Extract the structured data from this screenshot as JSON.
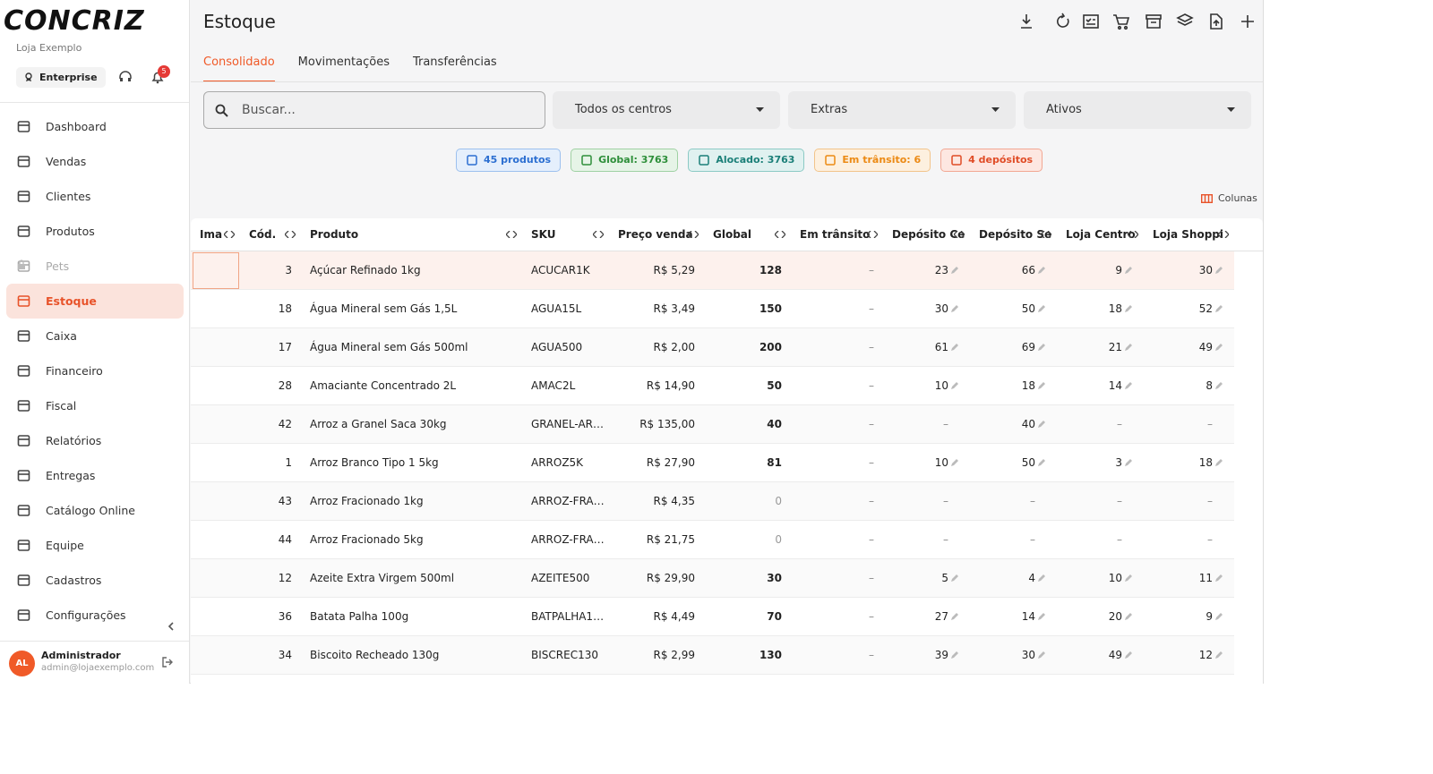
{
  "sidebar": {
    "logo": "CONCRIZ",
    "store": "Loja Exemplo",
    "plan": "Enterprise",
    "badge": "5",
    "nav": [
      "Dashboard",
      "Vendas",
      "Clientes",
      "Produtos",
      "Pets",
      "Estoque",
      "Caixa",
      "Financeiro",
      "Fiscal",
      "Relatórios",
      "Entregas",
      "Catálogo Online",
      "Equipe",
      "Cadastros",
      "Configurações"
    ],
    "active": 5,
    "locked": [
      4
    ],
    "user": {
      "initials": "AL",
      "name": "Administrador",
      "email": "admin@lojaexemplo.com"
    }
  },
  "header": {
    "title": "Estoque"
  },
  "tabs": [
    "Consolidado",
    "Movimentações",
    "Transferências"
  ],
  "filters": {
    "search": "Buscar...",
    "selects": [
      "Todos os centros",
      "Extras",
      "Ativos"
    ]
  },
  "chips": [
    "45 produtos",
    "Global: 3763",
    "Alocado: 3763",
    "Em trânsito: 6",
    "4 depósitos"
  ],
  "columns_button": "Colunas",
  "table": {
    "headers": [
      "Ima",
      "Cód.",
      "Produto",
      "SKU",
      "Preço venda",
      "Global",
      "Em trânsito",
      "Depósito Ce",
      "Depósito Se",
      "Loja Centro",
      "Loja Shoppi"
    ],
    "rows": [
      [
        3,
        "Açúcar Refinado 1kg",
        "ACUCAR1K",
        "R$ 5,29",
        128,
        "–",
        23,
        66,
        9,
        30
      ],
      [
        18,
        "Água Mineral sem Gás 1,5L",
        "AGUA15L",
        "R$ 3,49",
        150,
        "–",
        30,
        50,
        18,
        52
      ],
      [
        17,
        "Água Mineral sem Gás 500ml",
        "AGUA500",
        "R$ 2,00",
        200,
        "–",
        61,
        69,
        21,
        49
      ],
      [
        28,
        "Amaciante Concentrado 2L",
        "AMAC2L",
        "R$ 14,90",
        50,
        "–",
        10,
        18,
        14,
        8
      ],
      [
        42,
        "Arroz a Granel Saca 30kg",
        "GRANEL-AR…",
        "R$ 135,00",
        40,
        "–",
        "–",
        40,
        "–",
        "–"
      ],
      [
        1,
        "Arroz Branco Tipo 1 5kg",
        "ARROZ5K",
        "R$ 27,90",
        81,
        "–",
        10,
        50,
        3,
        18
      ],
      [
        43,
        "Arroz Fracionado 1kg",
        "ARROZ-FRA…",
        "R$ 4,35",
        0,
        "–",
        "–",
        "–",
        "–",
        "–"
      ],
      [
        44,
        "Arroz Fracionado 5kg",
        "ARROZ-FRA…",
        "R$ 21,75",
        0,
        "–",
        "–",
        "–",
        "–",
        "–"
      ],
      [
        12,
        "Azeite Extra Virgem 500ml",
        "AZEITE500",
        "R$ 29,90",
        30,
        "–",
        5,
        4,
        10,
        11
      ],
      [
        36,
        "Batata Palha 100g",
        "BATPALHA1…",
        "R$ 4,49",
        70,
        "–",
        27,
        14,
        20,
        9
      ],
      [
        34,
        "Biscoito Recheado 130g",
        "BISCREC130",
        "R$ 2,99",
        130,
        "–",
        39,
        30,
        49,
        12
      ]
    ]
  }
}
